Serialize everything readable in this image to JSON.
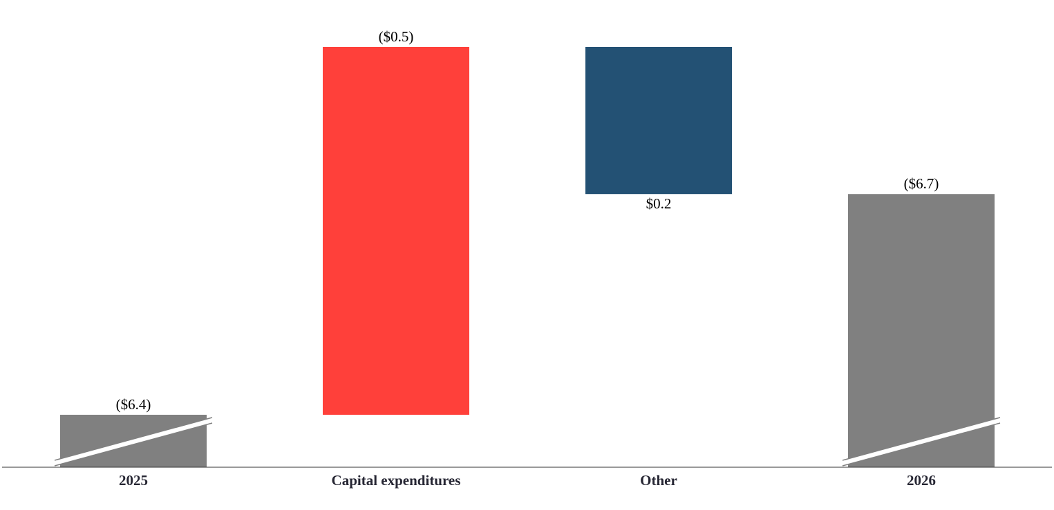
{
  "chart_data": {
    "type": "waterfall",
    "categories": [
      "2025",
      "Capital expenditures",
      "Other",
      "2026"
    ],
    "values": [
      -6.4,
      -0.5,
      0.2,
      -6.7
    ],
    "value_labels": [
      "($6.4)",
      "($0.5)",
      "$0.2",
      "($6.7)"
    ],
    "is_total": [
      true,
      false,
      false,
      true
    ],
    "colors": [
      "#808080",
      "#ff403a",
      "#235174",
      "#808080"
    ],
    "axis_break": true
  }
}
